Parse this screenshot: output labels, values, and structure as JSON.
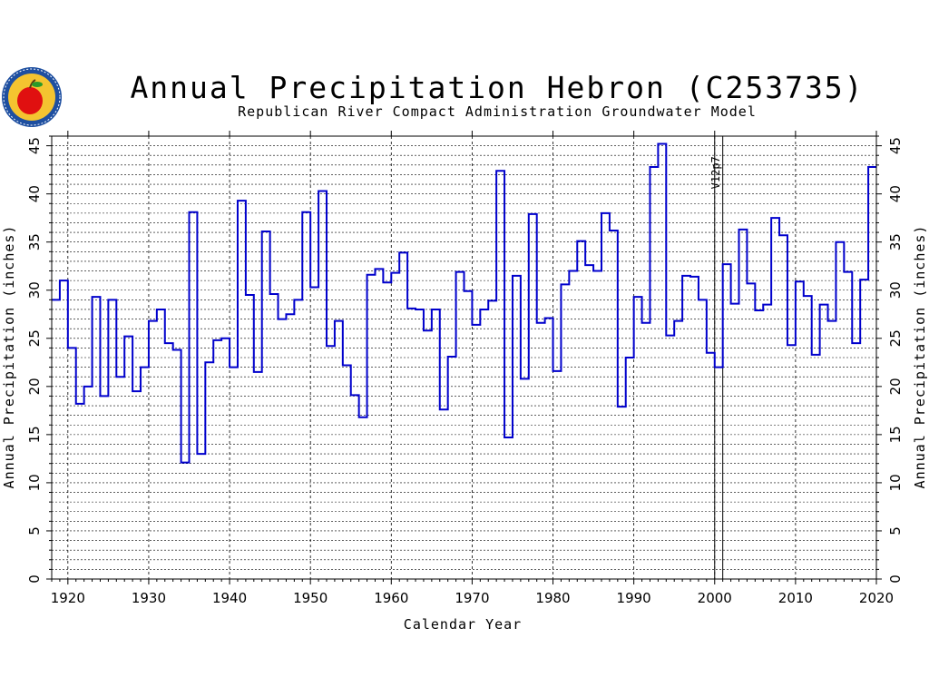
{
  "chart_data": {
    "type": "line",
    "step": true,
    "title": "Annual Precipitation Hebron (C253735)",
    "subtitle": "Republican River Compact Administration Groundwater Model",
    "xlabel": "Calendar Year",
    "ylabel": "Annual Precipitation (inches)",
    "ylabel_right": "Annual Precipitation (inches)",
    "xlim": [
      1918,
      2020
    ],
    "ylim": [
      0,
      46
    ],
    "x_ticks": [
      "1920",
      "1930",
      "1940",
      "1950",
      "1960",
      "1970",
      "1980",
      "1990",
      "2000",
      "2010",
      "2020"
    ],
    "y_ticks": [
      "0",
      "5",
      "10",
      "15",
      "20",
      "25",
      "30",
      "35",
      "40",
      "45"
    ],
    "grid": true,
    "reference_lines": [
      {
        "x": 2000,
        "label": "V12p7"
      },
      {
        "x": 2001,
        "label": ""
      }
    ],
    "line_color": "#0000cc",
    "series": [
      {
        "x": [
          1918,
          1919,
          1920,
          1921,
          1922,
          1923,
          1924,
          1925,
          1926,
          1927,
          1928,
          1929,
          1930,
          1931,
          1932,
          1933,
          1934,
          1935,
          1936,
          1937,
          1938,
          1939,
          1940,
          1941,
          1942,
          1943,
          1944,
          1945,
          1946,
          1947,
          1948,
          1949,
          1950,
          1951,
          1952,
          1953,
          1954,
          1955,
          1956,
          1957,
          1958,
          1959,
          1960,
          1961,
          1962,
          1963,
          1964,
          1965,
          1966,
          1967,
          1968,
          1969,
          1970,
          1971,
          1972,
          1973,
          1974,
          1975,
          1976,
          1977,
          1978,
          1979,
          1980,
          1981,
          1982,
          1983,
          1984,
          1985,
          1986,
          1987,
          1988,
          1989,
          1990,
          1991,
          1992,
          1993,
          1994,
          1995,
          1996,
          1997,
          1998,
          1999,
          2000,
          2001,
          2002,
          2003,
          2004,
          2005,
          2006,
          2007,
          2008,
          2009,
          2010,
          2011,
          2012,
          2013,
          2014,
          2015,
          2016,
          2017,
          2018,
          2019
        ],
        "values": [
          29.0,
          31.0,
          24.0,
          18.2,
          20.0,
          29.3,
          19.0,
          29.0,
          21.0,
          25.2,
          19.5,
          22.0,
          26.8,
          28.0,
          24.5,
          23.8,
          12.1,
          38.1,
          13.0,
          22.5,
          24.8,
          25.0,
          22.0,
          39.3,
          29.5,
          21.5,
          36.1,
          29.6,
          27.0,
          27.5,
          29.0,
          38.1,
          30.3,
          40.3,
          24.2,
          26.8,
          22.2,
          19.1,
          16.8,
          31.6,
          32.2,
          30.8,
          31.8,
          33.9,
          28.1,
          28.0,
          25.8,
          28.0,
          17.6,
          23.1,
          31.9,
          29.9,
          26.4,
          28.0,
          28.9,
          42.4,
          14.7,
          31.5,
          20.8,
          37.9,
          26.6,
          27.1,
          21.6,
          30.6,
          32.0,
          35.1,
          32.6,
          32.0,
          38.0,
          36.2,
          17.9,
          23.0,
          29.3,
          26.6,
          42.8,
          45.2,
          25.3,
          26.8,
          31.5,
          31.4,
          29.0,
          23.5,
          22.0,
          32.7,
          28.6,
          36.3,
          30.7,
          27.9,
          28.5,
          37.5,
          35.7,
          24.3,
          30.9,
          29.4,
          23.3,
          28.5,
          26.8,
          35.0,
          31.9,
          24.5,
          31.1,
          42.8
        ]
      }
    ]
  },
  "logo": {
    "name": "Republican River Compact Administration seal",
    "ring_color": "#1e4fa0",
    "inner_color": "#f4c430",
    "apple_color": "#e01010"
  }
}
